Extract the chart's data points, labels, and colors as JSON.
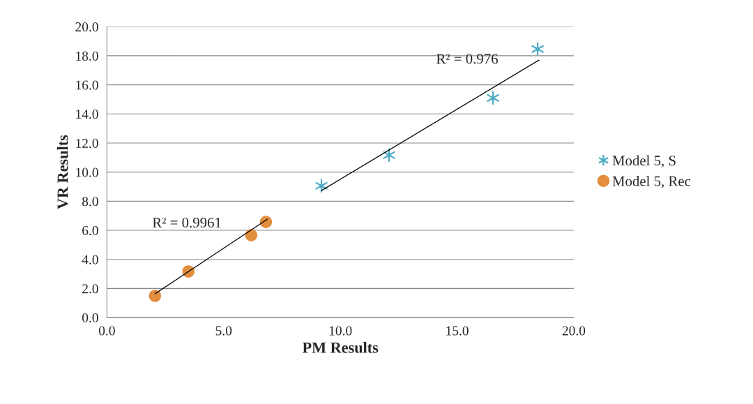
{
  "chart_data": {
    "type": "scatter",
    "xlabel": "PM Results",
    "ylabel": "VR Results",
    "series": [
      {
        "name": "Model 5, S",
        "marker": "cross",
        "color": "#4bacc6",
        "x": [
          9.19,
          12.09,
          16.54,
          18.45
        ],
        "values": [
          9.06,
          11.17,
          15.1,
          18.46
        ]
      },
      {
        "name": "Model 5, Rec",
        "marker": "circle",
        "color": "#e38d3e",
        "x": [
          2.06,
          3.49,
          6.18,
          6.81
        ],
        "values": [
          1.49,
          3.17,
          5.66,
          6.57
        ]
      },
      {
        "type": "line",
        "color": "#000000",
        "x": [
          9.19,
          18.51
        ],
        "values": [
          8.73,
          17.7
        ]
      },
      {
        "type": "line",
        "color": "#000000",
        "x": [
          2.06,
          6.87
        ],
        "values": [
          1.63,
          6.76
        ]
      }
    ],
    "annotations": [
      "R² = 0.976",
      "R² = 0.9961"
    ],
    "xlim": [
      0,
      20
    ],
    "xticks": [
      {
        "value": 0,
        "label": "0.0"
      },
      {
        "value": 5,
        "label": "5.0"
      },
      {
        "value": 10,
        "label": "10.0"
      },
      {
        "value": 15,
        "label": "15.0"
      },
      {
        "value": 20,
        "label": "20.0"
      }
    ],
    "ylim": [
      0,
      20
    ],
    "yticks": [
      {
        "value": 0,
        "label": "0.0"
      },
      {
        "value": 2,
        "label": "2.0"
      },
      {
        "value": 4,
        "label": "4.0"
      },
      {
        "value": 6,
        "label": "6.0"
      },
      {
        "value": 8,
        "label": "8.0"
      },
      {
        "value": 10,
        "label": "10.0"
      },
      {
        "value": 12,
        "label": "12.0"
      },
      {
        "value": 14,
        "label": "14.0"
      },
      {
        "value": 16,
        "label": "16.0"
      },
      {
        "value": 18,
        "label": "18.0"
      },
      {
        "value": 20,
        "label": "20.0"
      }
    ],
    "grid": "y",
    "legend": "right"
  }
}
